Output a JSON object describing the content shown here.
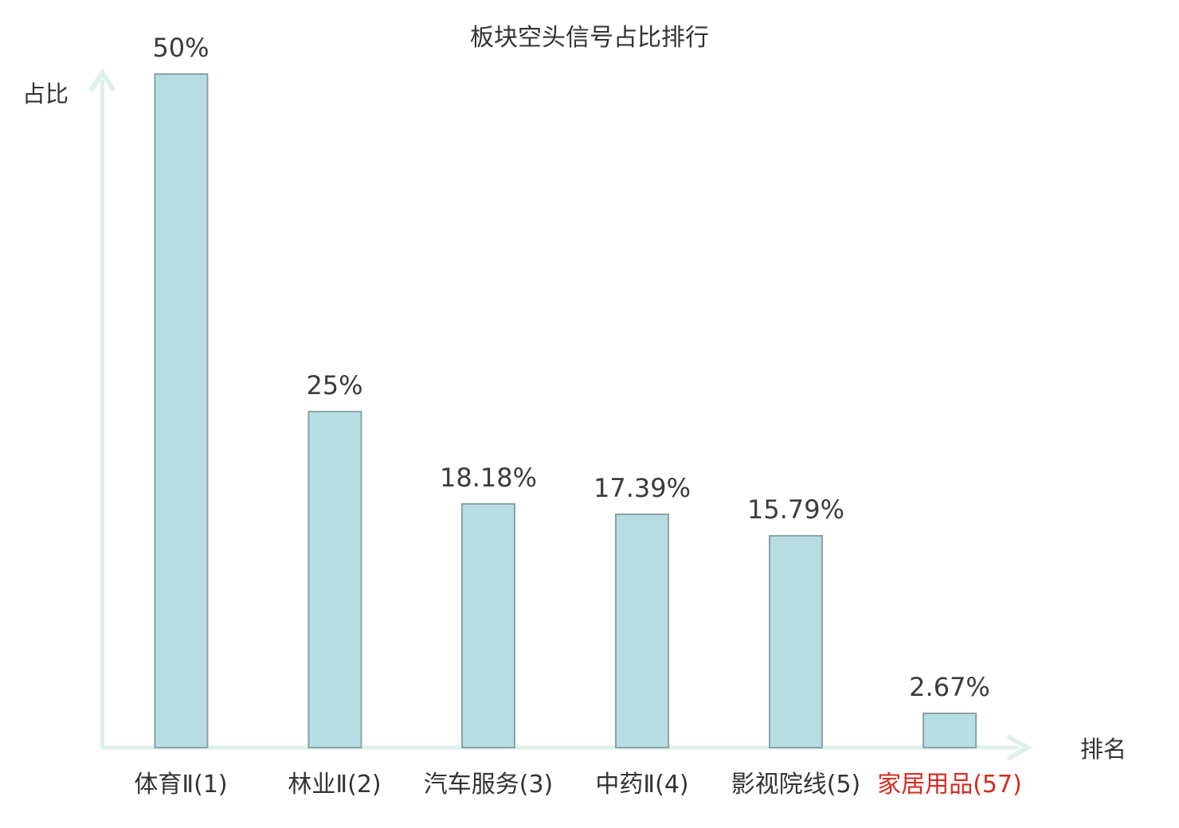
{
  "title": "板块空头信号占比排行",
  "axes": {
    "y_label": "占比",
    "x_label": "排名"
  },
  "colors": {
    "bar_fill": "#b6dde2",
    "bar_border": "#8ba2a6",
    "axis": "#def0eb",
    "text": "#333333",
    "value_text": "#3b3b3b",
    "highlight_red": "#d9291e"
  },
  "chart_data": {
    "type": "bar",
    "title": "板块空头信号占比排行",
    "xlabel": "排名",
    "ylabel": "占比",
    "categories": [
      "体育Ⅱ(1)",
      "林业Ⅱ(2)",
      "汽车服务(3)",
      "中药Ⅱ(4)",
      "影视院线(5)",
      "家居用品(57)"
    ],
    "values": [
      50,
      25,
      18.18,
      17.39,
      15.79,
      2.67
    ],
    "value_labels": [
      "50%",
      "25%",
      "18.18%",
      "17.39%",
      "15.79%",
      "2.67%"
    ],
    "category_text_colors": [
      "#333333",
      "#333333",
      "#333333",
      "#333333",
      "#333333",
      "#d9291e"
    ],
    "ylim": [
      0,
      50
    ],
    "grid": false,
    "legend": null,
    "highlighted_category": "家居用品(57)"
  }
}
